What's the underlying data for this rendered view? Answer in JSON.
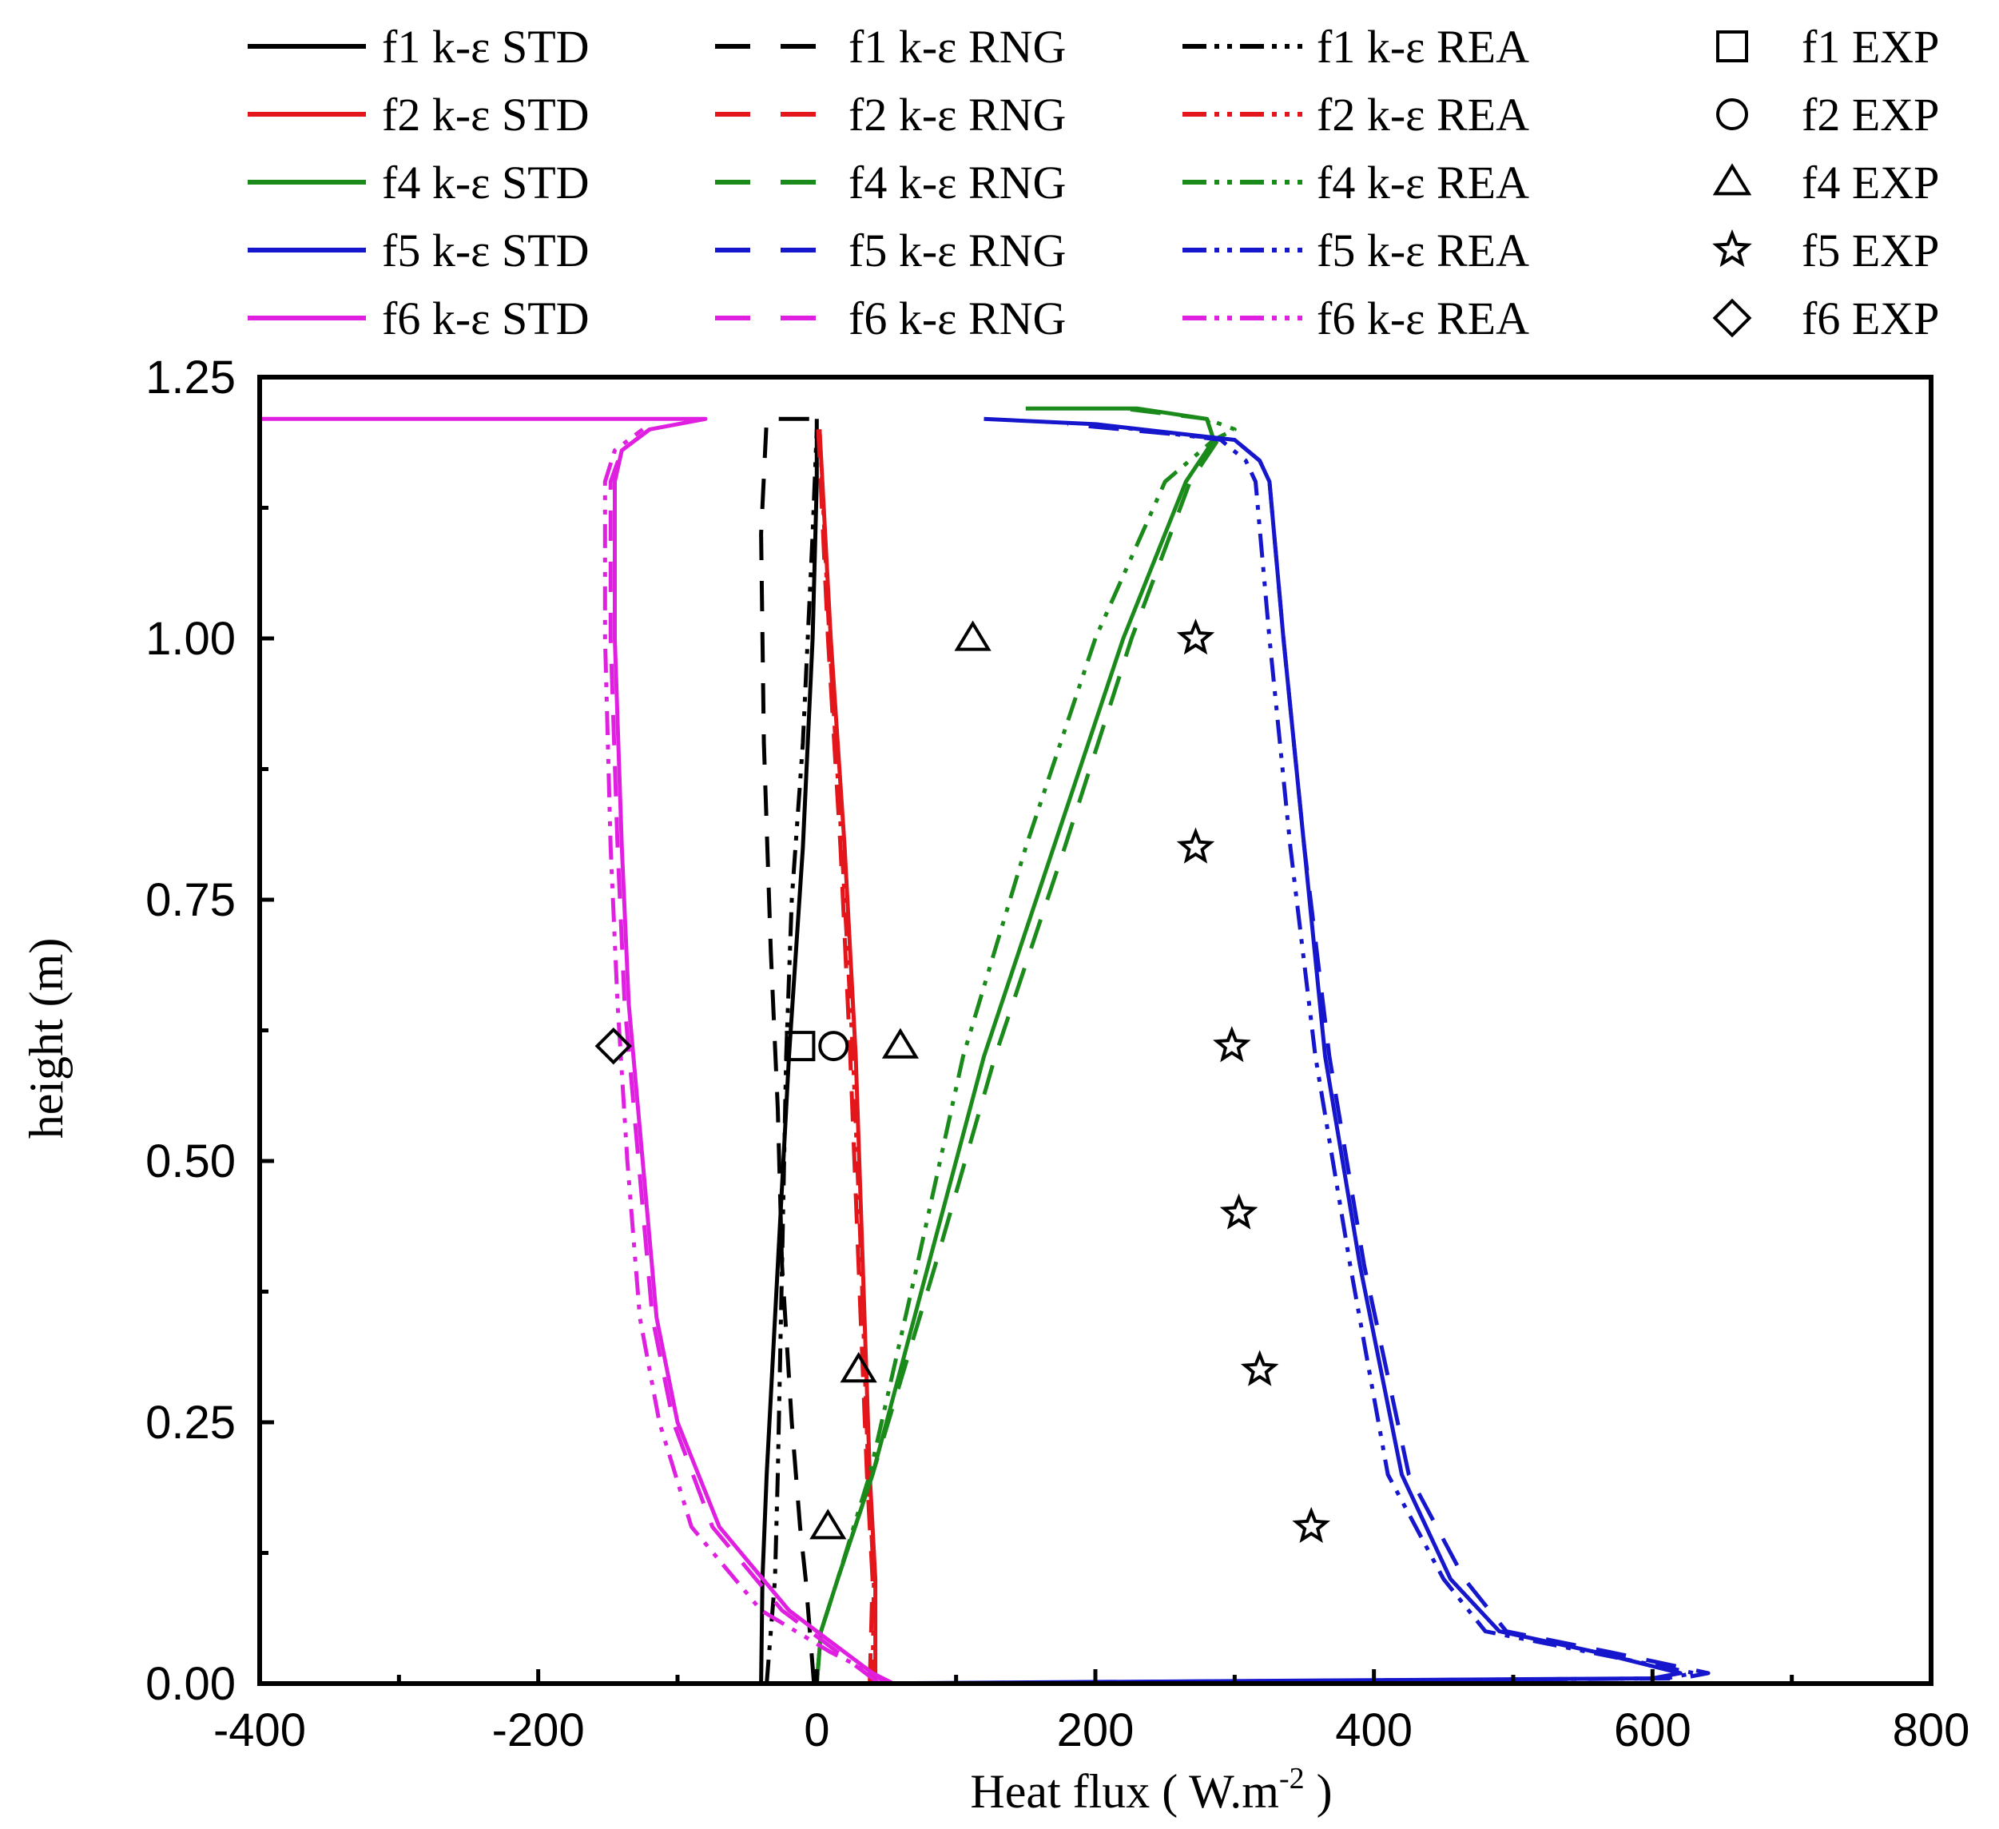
{
  "chart_data": {
    "type": "line",
    "title": "",
    "xlabel": "Heat flux ( W.m",
    "xlabel_superscript": "-2",
    "xlabel_close": " )",
    "ylabel": "height (m)",
    "xlim": [
      -400,
      800
    ],
    "ylim": [
      0,
      1.25
    ],
    "xticks": [
      "-400",
      "-200",
      "0",
      "200",
      "400",
      "600",
      "800"
    ],
    "yticks": [
      "0.00",
      "0.25",
      "0.50",
      "0.75",
      "1.00",
      "1.25"
    ],
    "grid": false,
    "legend_position": "top, above plot",
    "colors": {
      "f1": "#000000",
      "f2": "#e3161b",
      "f4": "#1a8a1a",
      "f5": "#1616cc",
      "f6": "#e020e0"
    },
    "series": [
      {
        "name": "f1 k-ε STD",
        "color": "#000000",
        "style": "solid",
        "x": [
          -40,
          -39,
          -36,
          -28,
          -20,
          -10,
          -3,
          0,
          0
        ],
        "y": [
          0,
          0.1,
          0.2,
          0.4,
          0.6,
          0.8,
          1.0,
          1.15,
          1.21
        ]
      },
      {
        "name": "f1 k-ε RNG",
        "color": "#000000",
        "style": "dash",
        "x": [
          -2,
          -5,
          -8,
          -12,
          -18,
          -25,
          -28,
          -33,
          -38,
          -40,
          -36,
          0
        ],
        "y": [
          0,
          0.05,
          0.1,
          0.15,
          0.25,
          0.4,
          0.55,
          0.7,
          0.9,
          1.1,
          1.21,
          1.21
        ]
      },
      {
        "name": "f1 k-ε REA",
        "color": "#000000",
        "style": "dashdotdot",
        "x": [
          -36,
          -30,
          -28,
          -25,
          -22,
          -18,
          -10,
          -3,
          0
        ],
        "y": [
          0,
          0.1,
          0.2,
          0.4,
          0.6,
          0.75,
          0.9,
          1.1,
          1.2
        ]
      },
      {
        "name": "f2 k-ε STD",
        "color": "#e3161b",
        "style": "solid",
        "x": [
          42,
          42,
          38,
          33,
          28,
          20,
          10,
          2
        ],
        "y": [
          0,
          0.1,
          0.2,
          0.4,
          0.6,
          0.8,
          1.0,
          1.2
        ]
      },
      {
        "name": "f2 k-ε RNG",
        "color": "#e3161b",
        "style": "dash",
        "x": [
          38,
          40,
          36,
          30,
          24,
          17,
          8,
          1
        ],
        "y": [
          0,
          0.1,
          0.2,
          0.4,
          0.6,
          0.8,
          1.0,
          1.2
        ]
      },
      {
        "name": "f2 k-ε REA",
        "color": "#e3161b",
        "style": "dashdotdot",
        "x": [
          40,
          41,
          37,
          32,
          26,
          18,
          9,
          2
        ],
        "y": [
          0,
          0.1,
          0.2,
          0.4,
          0.6,
          0.8,
          1.0,
          1.2
        ]
      },
      {
        "name": "f4 k-ε STD",
        "color": "#1a8a1a",
        "style": "solid",
        "x": [
          0,
          3,
          15,
          40,
          80,
          120,
          170,
          220,
          265,
          285,
          280,
          230,
          150
        ],
        "y": [
          0,
          0.05,
          0.1,
          0.2,
          0.4,
          0.6,
          0.8,
          1.0,
          1.15,
          1.19,
          1.21,
          1.22,
          1.22
        ]
      },
      {
        "name": "f4 k-ε RNG",
        "color": "#1a8a1a",
        "style": "dash",
        "x": [
          0,
          3,
          15,
          40,
          85,
          128,
          178,
          226,
          268,
          288,
          280,
          220
        ],
        "y": [
          0,
          0.05,
          0.1,
          0.2,
          0.4,
          0.6,
          0.8,
          1.0,
          1.15,
          1.19,
          1.21,
          1.22
        ]
      },
      {
        "name": "f4 k-ε REA",
        "color": "#1a8a1a",
        "style": "dashdotdot",
        "x": [
          0,
          3,
          15,
          38,
          72,
          105,
          150,
          200,
          250,
          285,
          300,
          280
        ],
        "y": [
          0,
          0.05,
          0.1,
          0.2,
          0.4,
          0.6,
          0.8,
          1.0,
          1.15,
          1.19,
          1.2,
          1.21
        ]
      },
      {
        "name": "f5 k-ε STD",
        "color": "#1616cc",
        "style": "solid",
        "x": [
          20,
          600,
          620,
          560,
          490,
          455,
          420,
          390,
          365,
          350,
          335,
          325,
          318,
          300,
          200,
          120
        ],
        "y": [
          0,
          0.005,
          0.01,
          0.03,
          0.05,
          0.1,
          0.2,
          0.4,
          0.6,
          0.8,
          1.0,
          1.15,
          1.17,
          1.19,
          1.205,
          1.21
        ]
      },
      {
        "name": "f5 k-ε RNG",
        "color": "#1616cc",
        "style": "dash",
        "x": [
          40,
          620,
          640,
          570,
          495,
          465,
          425,
          393,
          368,
          350,
          335,
          325,
          318,
          300,
          180
        ],
        "y": [
          0,
          0.005,
          0.01,
          0.03,
          0.05,
          0.1,
          0.2,
          0.4,
          0.6,
          0.8,
          1.0,
          1.15,
          1.17,
          1.19,
          1.205
        ]
      },
      {
        "name": "f5 k-ε REA",
        "color": "#1616cc",
        "style": "dashdotdot",
        "x": [
          60,
          610,
          630,
          555,
          480,
          450,
          410,
          383,
          358,
          340,
          325,
          315,
          308,
          290,
          200
        ],
        "y": [
          0,
          0.005,
          0.01,
          0.03,
          0.05,
          0.1,
          0.2,
          0.4,
          0.6,
          0.8,
          1.0,
          1.15,
          1.17,
          1.19,
          1.205
        ]
      },
      {
        "name": "f6 k-ε STD",
        "color": "#e020e0",
        "style": "solid",
        "x": [
          50,
          20,
          -20,
          -70,
          -100,
          -115,
          -125,
          -135,
          -140,
          -145,
          -145,
          -140,
          -120,
          -80,
          -400
        ],
        "y": [
          0,
          0.03,
          0.07,
          0.15,
          0.25,
          0.35,
          0.5,
          0.65,
          0.8,
          1.0,
          1.15,
          1.18,
          1.2,
          1.21,
          1.21
        ]
      },
      {
        "name": "f6 k-ε RNG",
        "color": "#e020e0",
        "style": "dash",
        "x": [
          45,
          15,
          -25,
          -75,
          -103,
          -118,
          -128,
          -138,
          -143,
          -148,
          -148,
          -140,
          -120
        ],
        "y": [
          0,
          0.03,
          0.07,
          0.15,
          0.25,
          0.35,
          0.5,
          0.65,
          0.8,
          1.0,
          1.15,
          1.18,
          1.2
        ]
      },
      {
        "name": "f6 k-ε REA",
        "color": "#e020e0",
        "style": "dashdotdot",
        "x": [
          55,
          10,
          -40,
          -90,
          -113,
          -127,
          -136,
          -143,
          -148,
          -152,
          -152,
          -145,
          -125
        ],
        "y": [
          0,
          0.03,
          0.07,
          0.15,
          0.25,
          0.35,
          0.5,
          0.65,
          0.8,
          1.0,
          1.15,
          1.18,
          1.2
        ]
      }
    ],
    "experimental": [
      {
        "name": "f1 EXP",
        "marker": "square",
        "x": [
          -12
        ],
        "y": [
          0.61
        ]
      },
      {
        "name": "f2 EXP",
        "marker": "circle",
        "x": [
          12
        ],
        "y": [
          0.61
        ]
      },
      {
        "name": "f4 EXP",
        "marker": "triangle",
        "x": [
          112,
          60,
          30,
          8
        ],
        "y": [
          1.0,
          0.61,
          0.3,
          0.15
        ]
      },
      {
        "name": "f5 EXP",
        "marker": "star",
        "x": [
          272,
          272,
          298,
          303,
          318,
          355
        ],
        "y": [
          1.0,
          0.8,
          0.61,
          0.45,
          0.3,
          0.15
        ]
      },
      {
        "name": "f6 EXP",
        "marker": "diamond",
        "x": [
          -146
        ],
        "y": [
          0.61
        ]
      }
    ],
    "legend": [
      {
        "label": "f1 k-ε STD",
        "color": "#000000",
        "style": "solid"
      },
      {
        "label": "f1 k-ε RNG",
        "color": "#000000",
        "style": "dash"
      },
      {
        "label": "f1 k-ε REA",
        "color": "#000000",
        "style": "dashdotdot"
      },
      {
        "label": "f1 EXP",
        "color": "#000000",
        "marker": "square"
      },
      {
        "label": "f2 k-ε STD",
        "color": "#e3161b",
        "style": "solid"
      },
      {
        "label": "f2 k-ε RNG",
        "color": "#e3161b",
        "style": "dash"
      },
      {
        "label": "f2 k-ε REA",
        "color": "#e3161b",
        "style": "dashdotdot"
      },
      {
        "label": "f2 EXP",
        "color": "#000000",
        "marker": "circle"
      },
      {
        "label": "f4 k-ε STD",
        "color": "#1a8a1a",
        "style": "solid"
      },
      {
        "label": "f4 k-ε RNG",
        "color": "#1a8a1a",
        "style": "dash"
      },
      {
        "label": "f4 k-ε REA",
        "color": "#1a8a1a",
        "style": "dashdotdot"
      },
      {
        "label": "f4 EXP",
        "color": "#000000",
        "marker": "triangle"
      },
      {
        "label": "f5 k-ε STD",
        "color": "#1616cc",
        "style": "solid"
      },
      {
        "label": "f5 k-ε RNG",
        "color": "#1616cc",
        "style": "dash"
      },
      {
        "label": "f5 k-ε REA",
        "color": "#1616cc",
        "style": "dashdotdot"
      },
      {
        "label": "f5 EXP",
        "color": "#000000",
        "marker": "star"
      },
      {
        "label": "f6 k-ε  STD",
        "color": "#e020e0",
        "style": "solid"
      },
      {
        "label": "f6 k-ε RNG",
        "color": "#e020e0",
        "style": "dash"
      },
      {
        "label": "f6 k-ε REA",
        "color": "#e020e0",
        "style": "dashdotdot"
      },
      {
        "label": "f6 EXP",
        "color": "#000000",
        "marker": "diamond"
      }
    ]
  }
}
